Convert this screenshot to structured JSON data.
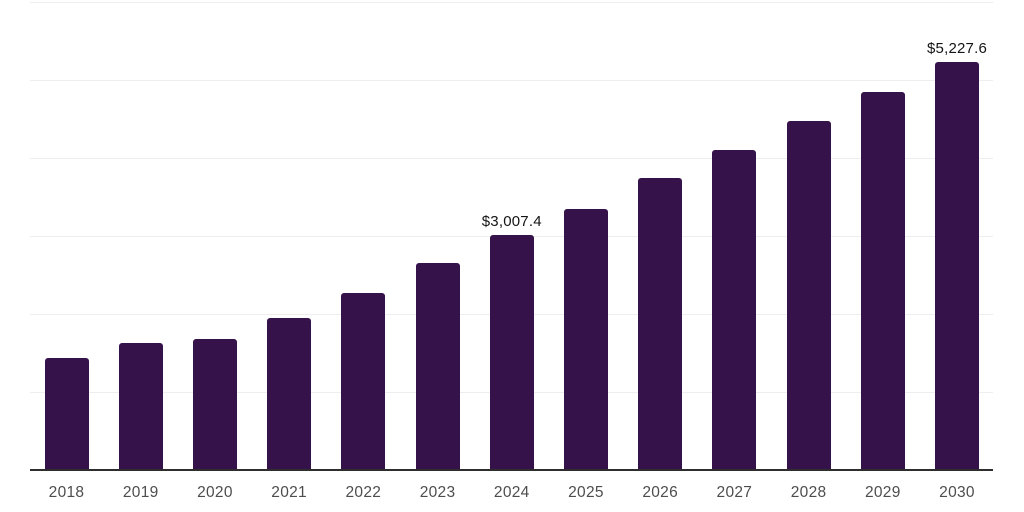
{
  "chart_data": {
    "type": "bar",
    "title": "",
    "xlabel": "",
    "ylabel": "",
    "categories": [
      "2018",
      "2019",
      "2020",
      "2021",
      "2022",
      "2023",
      "2024",
      "2025",
      "2026",
      "2027",
      "2028",
      "2029",
      "2030"
    ],
    "values": [
      1440,
      1625,
      1675,
      1945,
      2270,
      2660,
      3007.4,
      3350,
      3745,
      4105,
      4475,
      4840,
      5227.6
    ],
    "data_labels": {
      "2024": "$3,007.4",
      "2030": "$5,227.6"
    },
    "ylim": [
      0,
      6000
    ],
    "gridline_step": 1000,
    "grid": true,
    "legend": false,
    "colors": {
      "bar": "#351249",
      "gridline": "#eeeeee",
      "axis_line": "#2e2e2e",
      "tick_label": "#4d4d4d",
      "value_label": "#141414",
      "background": "#ffffff"
    }
  }
}
